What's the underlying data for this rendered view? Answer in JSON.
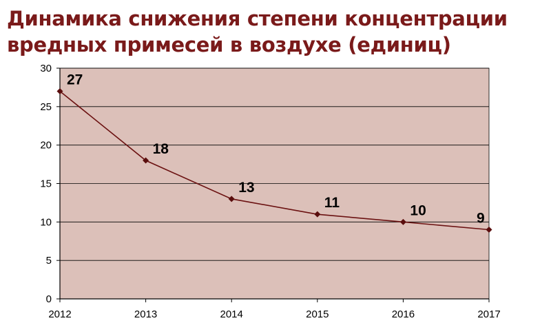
{
  "colors": {
    "title": "#7a1a1a",
    "plot_background": "#dcc0b9",
    "line": "#6b1111",
    "marker": "#5a0d0d",
    "axis": "#000000",
    "grid": "#000000"
  },
  "chart_data": {
    "type": "line",
    "title": "Динамика снижения степени концентрации вредных примесей в воздухе (единиц)",
    "xlabel": "",
    "ylabel": "",
    "categories": [
      "2012",
      "2013",
      "2014",
      "2015",
      "2016",
      "2017"
    ],
    "series": [
      {
        "values": [
          27,
          18,
          13,
          11,
          10,
          9
        ]
      }
    ],
    "data_labels": [
      "27",
      "18",
      "13",
      "11",
      "10",
      "9"
    ],
    "ylim": [
      0,
      30
    ],
    "yticks": [
      0,
      5,
      10,
      15,
      20,
      25,
      30
    ],
    "ytick_labels": [
      "0",
      "5",
      "10",
      "15",
      "20",
      "25",
      "30"
    ],
    "grid": true,
    "legend": "none"
  }
}
